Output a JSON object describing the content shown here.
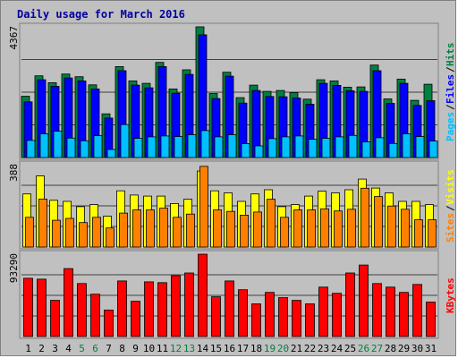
{
  "chart_data": {
    "type": "bar",
    "title": "Daily usage for March 2016",
    "categories": [
      "1",
      "2",
      "3",
      "4",
      "5",
      "6",
      "7",
      "8",
      "9",
      "10",
      "11",
      "12",
      "13",
      "14",
      "15",
      "16",
      "17",
      "18",
      "19",
      "20",
      "21",
      "22",
      "23",
      "24",
      "25",
      "26",
      "27",
      "28",
      "29",
      "30",
      "31"
    ],
    "weekend_days": [
      "5",
      "6",
      "12",
      "13",
      "19",
      "20",
      "26",
      "27"
    ],
    "panels": [
      {
        "name": "pages-files-hits",
        "ymax_label": "4367",
        "ymax": 4367,
        "axis_labels": [
          "Pages",
          "Files",
          "Hits"
        ],
        "series": [
          {
            "name": "Hits",
            "color": "#008040",
            "values": [
              2050,
              2730,
              2500,
              2790,
              2700,
              2430,
              1460,
              3040,
              2560,
              2480,
              3180,
              2290,
              2930,
              4367,
              2140,
              2850,
              2000,
              2420,
              2210,
              2240,
              2170,
              1950,
              2600,
              2560,
              2350,
              2360,
              3090,
              1960,
              2620,
              1910,
              2450
            ]
          },
          {
            "name": "Files",
            "color": "#0000ff",
            "values": [
              1860,
              2600,
              2380,
              2660,
              2560,
              2290,
              1320,
              2900,
              2420,
              2330,
              3040,
              2150,
              2780,
              4100,
              1970,
              2720,
              1820,
              2240,
              2040,
              2030,
              1990,
              1780,
              2480,
              2410,
              2230,
              2210,
              2900,
              1810,
              2480,
              1740,
              1900
            ]
          },
          {
            "name": "Pages",
            "color": "#00c0ff",
            "values": [
              570,
              790,
              880,
              650,
              560,
              730,
              270,
              1100,
              640,
              690,
              720,
              700,
              760,
              900,
              690,
              760,
              460,
              390,
              630,
              690,
              720,
              610,
              640,
              690,
              740,
              520,
              660,
              470,
              790,
              700,
              550
            ]
          }
        ]
      },
      {
        "name": "sites-visits",
        "ymax_label": "388",
        "ymax": 388,
        "axis_labels": [
          "Sites",
          "Visits"
        ],
        "series": [
          {
            "name": "Visits",
            "color": "#ffff00",
            "values": [
              250,
              335,
              220,
              215,
              190,
              200,
              145,
              265,
              245,
              240,
              240,
              205,
              225,
              358,
              265,
              255,
              215,
              250,
              270,
              190,
              200,
              240,
              263,
              255,
              270,
              320,
              278,
              255,
              215,
              215,
              200
            ]
          },
          {
            "name": "Sites",
            "color": "#ff8000",
            "values": [
              140,
              226,
              126,
              135,
              115,
              140,
              90,
              160,
              175,
              175,
              183,
              140,
              155,
              380,
              175,
              168,
              150,
              165,
              225,
              140,
              175,
              175,
              180,
              170,
              178,
              277,
              238,
              193,
              178,
              128,
              128
            ]
          }
        ]
      },
      {
        "name": "kbytes",
        "ymax_label": "93290",
        "ymax": 93290,
        "axis_labels": [
          "KBytes"
        ],
        "series": [
          {
            "name": "KBytes",
            "color": "#ff0000",
            "values": [
              66000,
              65000,
              41000,
              77000,
              60000,
              48000,
              30000,
              63000,
              40000,
              62000,
              61000,
              69000,
              72000,
              93290,
              45000,
              63000,
              53000,
              37000,
              50000,
              44000,
              41000,
              37000,
              56000,
              49000,
              72000,
              81000,
              60000,
              56000,
              50000,
              59000,
              39000
            ]
          }
        ]
      }
    ]
  }
}
